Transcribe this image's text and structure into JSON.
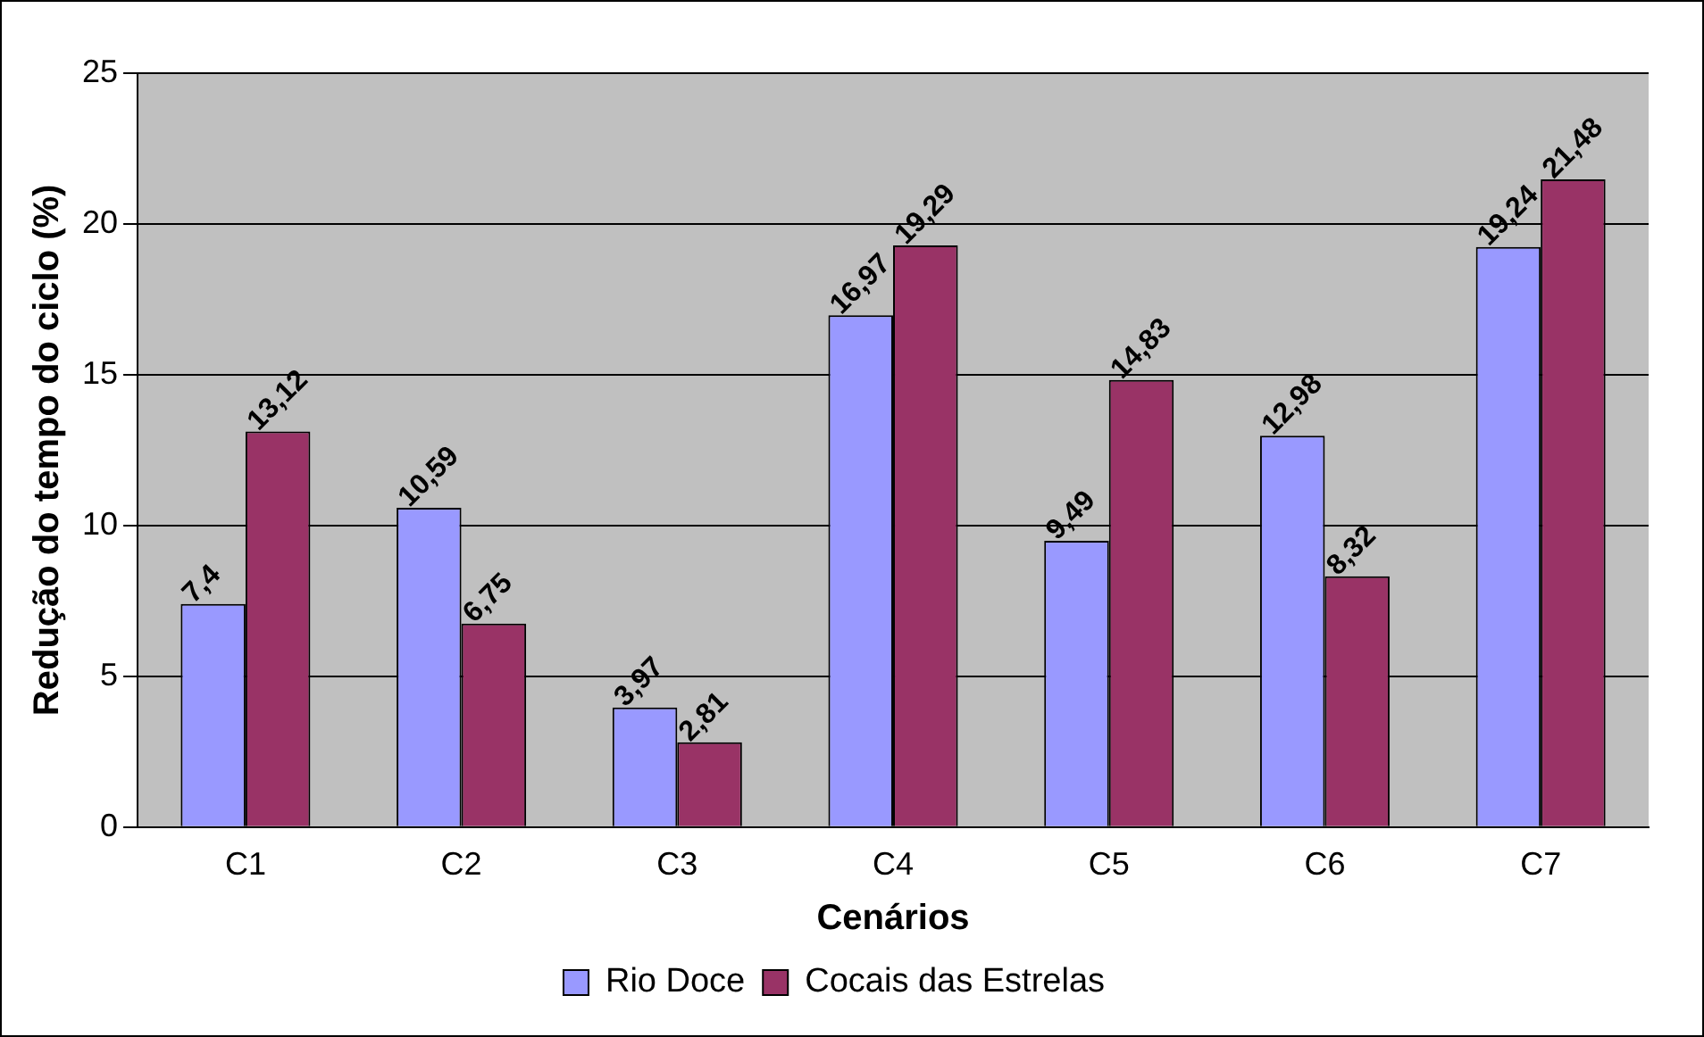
{
  "chart_data": {
    "type": "bar",
    "xlabel": "Cenários",
    "ylabel": "Redução do tempo do ciclo (%)",
    "categories": [
      "C1",
      "C2",
      "C3",
      "C4",
      "C5",
      "C6",
      "C7"
    ],
    "series": [
      {
        "name": "Rio Doce",
        "color": "#9999ff",
        "values": [
          7.4,
          10.59,
          3.97,
          16.97,
          9.49,
          12.98,
          19.24
        ],
        "value_labels": [
          "7,4",
          "10,59",
          "3,97",
          "16,97",
          "9,49",
          "12,98",
          "19,24"
        ]
      },
      {
        "name": "Cocais das Estrelas",
        "color": "#993366",
        "values": [
          13.12,
          6.75,
          2.81,
          19.29,
          14.83,
          8.32,
          21.48
        ],
        "value_labels": [
          "13,12",
          "6,75",
          "2,81",
          "19,29",
          "14,83",
          "8,32",
          "21,48"
        ]
      }
    ],
    "ylim": [
      0,
      25
    ],
    "yticks": [
      0,
      5,
      10,
      15,
      20,
      25
    ],
    "grid": "y",
    "legend": "bottom"
  }
}
